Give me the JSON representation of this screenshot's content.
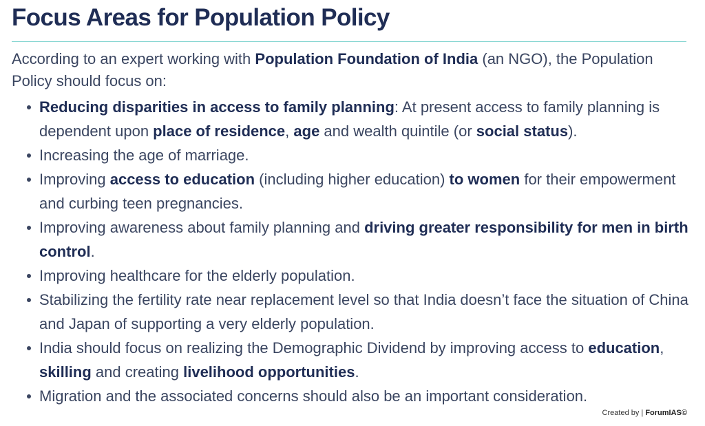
{
  "title": "Focus Areas for Population Policy",
  "intro": {
    "before": "According to an expert working with ",
    "org": "Population Foundation of India",
    "after": " (an NGO), the Population Policy should focus on:"
  },
  "bullets": [
    {
      "b1": "Reducing disparities in access to family planning",
      "t1": ": At present access to family planning is dependent upon ",
      "b2": "place of residence",
      "t2": ", ",
      "b3": "age",
      "t3": " and wealth quintile (or ",
      "b4": "social status",
      "t4": ")."
    },
    {
      "t1": "Increasing the age of marriage."
    },
    {
      "t1": "Improving ",
      "b1": "access to education",
      "t2": " (including higher education) ",
      "b2": "to women",
      "t3": " for their empowerment and curbing teen pregnancies."
    },
    {
      "t1": "Improving awareness about family planning and ",
      "b1": "driving greater responsibility for men in birth control",
      "t2": "."
    },
    {
      "t1": "Improving healthcare for the elderly population."
    },
    {
      "t1": "Stabilizing the fertility rate near replacement level so that India doesn’t face the situation of China and Japan of supporting a very elderly population."
    },
    {
      "t1": "India should focus on realizing the Demographic Dividend by improving access to ",
      "b1": "education",
      "t2": ", ",
      "b2": "skilling",
      "t3": " and creating ",
      "b3": "livelihood opportunities",
      "t4": "."
    },
    {
      "t1": "Migration and the associated concerns should also be an important consideration."
    }
  ],
  "credit": {
    "prefix": "Created by | ",
    "brand": "ForumIAS©"
  },
  "colors": {
    "title": "#1f2d55",
    "body_text": "#3a4560",
    "rule": "#7fd3cf"
  }
}
